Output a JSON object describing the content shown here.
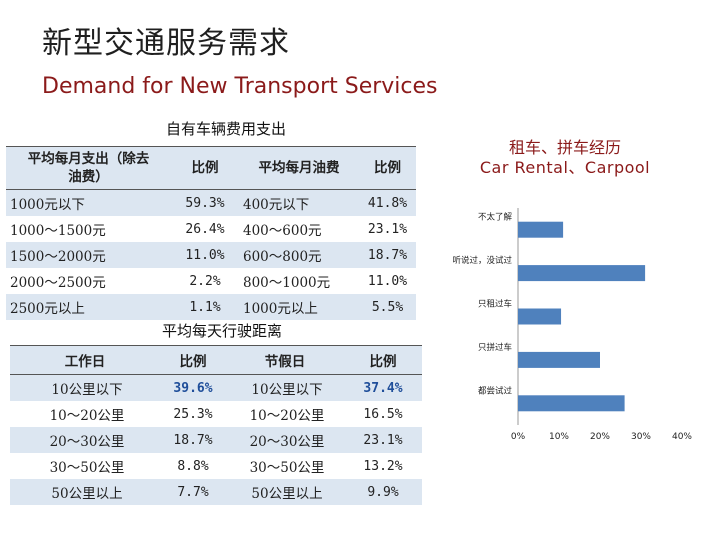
{
  "header": {
    "title_cn": "新型交通服务需求",
    "title_en": "Demand for New Transport Services"
  },
  "vehicle_cost": {
    "title": "自有车辆费用支出",
    "headers": [
      "平均每月支出（除去油费）",
      "比例",
      "平均每月油费",
      "比例"
    ],
    "rows": [
      [
        "1000元以下",
        "59.3%",
        "400元以下",
        "41.8%"
      ],
      [
        "1000～1500元",
        "26.4%",
        "400～600元",
        "23.1%"
      ],
      [
        "1500～2000元",
        "11.0%",
        "600～800元",
        "18.7%"
      ],
      [
        "2000～2500元",
        "2.2%",
        "800～1000元",
        "11.0%"
      ],
      [
        "2500元以上",
        "1.1%",
        "1000元以上",
        "5.5%"
      ]
    ]
  },
  "daily_distance": {
    "title": "平均每天行驶距离",
    "headers": [
      "工作日",
      "比例",
      "节假日",
      "比例"
    ],
    "rows": [
      [
        "10公里以下",
        "39.6%",
        "10公里以下",
        "37.4%"
      ],
      [
        "10～20公里",
        "25.3%",
        "10～20公里",
        "16.5%"
      ],
      [
        "20～30公里",
        "18.7%",
        "20～30公里",
        "23.1%"
      ],
      [
        "30～50公里",
        "8.8%",
        "30～50公里",
        "13.2%"
      ],
      [
        "50公里以上",
        "7.7%",
        "50公里以上",
        "9.9%"
      ]
    ]
  },
  "chart_data": {
    "type": "bar",
    "orientation": "horizontal",
    "title": "租车、拼车经历",
    "subtitle": "Car Rental、Carpool",
    "categories": [
      "不太了解",
      "听说过，没试过",
      "只租过车",
      "只拼过车",
      "都尝试过"
    ],
    "values": [
      11,
      31,
      10.5,
      20,
      26
    ],
    "xlim": [
      0,
      40
    ],
    "x_ticks": [
      "0%",
      "10%",
      "20%",
      "30%",
      "40%"
    ],
    "grid": false,
    "legend": "none",
    "bar_color": "#4f81bd"
  }
}
